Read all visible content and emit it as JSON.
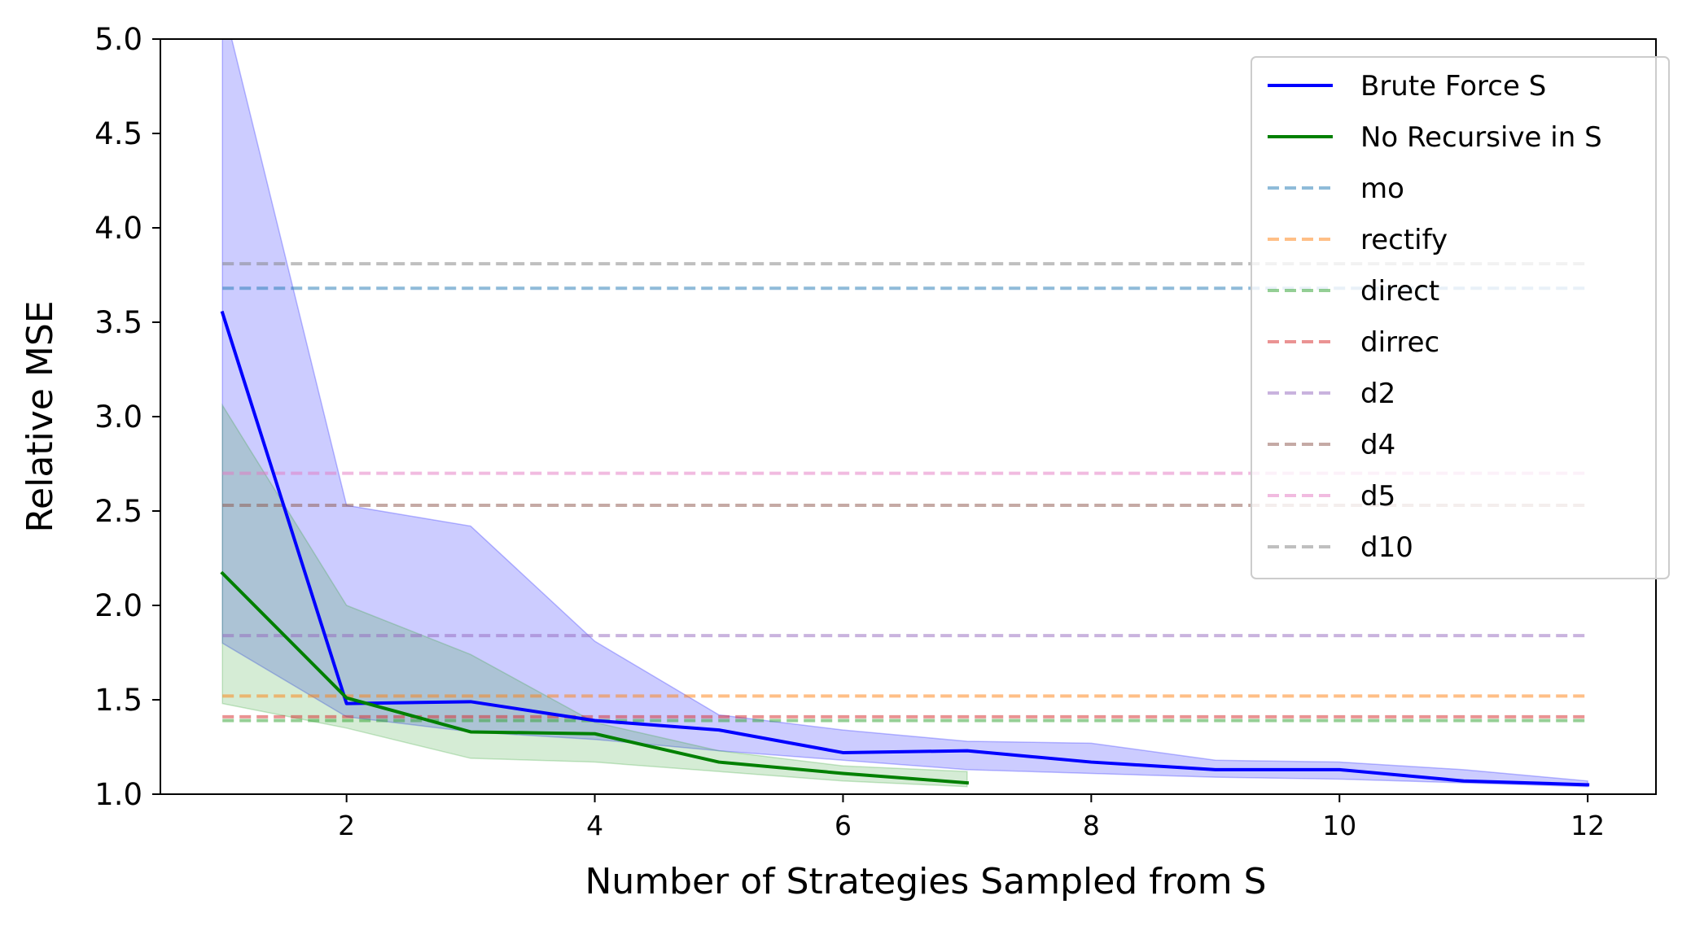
{
  "chart_data": {
    "type": "line",
    "title": "",
    "xlabel": "Number of Strategies Sampled from S",
    "ylabel": "Relative MSE",
    "xlim": [
      0.5,
      12.55
    ],
    "ylim": [
      1.0,
      5.0
    ],
    "x_ticks": [
      2,
      4,
      6,
      8,
      10,
      12
    ],
    "x_tick_labels": [
      "2",
      "4",
      "6",
      "8",
      "10",
      "12"
    ],
    "y_ticks": [
      1.0,
      1.5,
      2.0,
      2.5,
      3.0,
      3.5,
      4.0,
      4.5,
      5.0
    ],
    "y_tick_labels": [
      "1.0",
      "1.5",
      "2.0",
      "2.5",
      "3.0",
      "3.5",
      "4.0",
      "4.5",
      "5.0"
    ],
    "grid": false,
    "legend_position": "top-right",
    "series": [
      {
        "name": "Brute Force S",
        "style": "solid",
        "color": "#0000ff",
        "x": [
          1,
          2,
          3,
          4,
          5,
          6,
          7,
          8,
          9,
          10,
          11,
          12
        ],
        "y": [
          3.55,
          1.48,
          1.49,
          1.39,
          1.34,
          1.22,
          1.23,
          1.17,
          1.13,
          1.13,
          1.07,
          1.05
        ],
        "band_upper": [
          5.2,
          2.53,
          2.42,
          1.81,
          1.42,
          1.34,
          1.28,
          1.27,
          1.18,
          1.17,
          1.13,
          1.07
        ],
        "band_lower": [
          1.8,
          1.41,
          1.33,
          1.29,
          1.23,
          1.18,
          1.13,
          1.11,
          1.09,
          1.08,
          1.06,
          1.04
        ],
        "band_color": "#0000ff"
      },
      {
        "name": "No Recursive in S",
        "style": "solid",
        "color": "#008000",
        "x": [
          1,
          2,
          3,
          4,
          5,
          6,
          7
        ],
        "y": [
          2.17,
          1.51,
          1.33,
          1.32,
          1.17,
          1.11,
          1.06
        ],
        "band_upper": [
          3.06,
          2.0,
          1.74,
          1.38,
          1.23,
          1.15,
          1.12
        ],
        "band_lower": [
          1.48,
          1.35,
          1.19,
          1.17,
          1.12,
          1.07,
          1.04
        ],
        "band_color": "#2ca02c"
      },
      {
        "name": "mo",
        "style": "dashed",
        "color": "#1f77b4",
        "x": [
          1,
          12
        ],
        "y": [
          3.68,
          3.68
        ]
      },
      {
        "name": "rectify",
        "style": "dashed",
        "color": "#ff7f0e",
        "x": [
          1,
          12
        ],
        "y": [
          1.52,
          1.52
        ]
      },
      {
        "name": "direct",
        "style": "dashed",
        "color": "#2ca02c",
        "x": [
          1,
          12
        ],
        "y": [
          1.39,
          1.39
        ]
      },
      {
        "name": "dirrec",
        "style": "dashed",
        "color": "#d62728",
        "x": [
          1,
          12
        ],
        "y": [
          1.41,
          1.41
        ]
      },
      {
        "name": "d2",
        "style": "dashed",
        "color": "#9467bd",
        "x": [
          1,
          12
        ],
        "y": [
          1.84,
          1.84
        ]
      },
      {
        "name": "d4",
        "style": "dashed",
        "color": "#8c564b",
        "x": [
          1,
          12
        ],
        "y": [
          2.53,
          2.53
        ]
      },
      {
        "name": "d5",
        "style": "dashed",
        "color": "#e377c2",
        "x": [
          1,
          12
        ],
        "y": [
          2.7,
          2.7
        ]
      },
      {
        "name": "d10",
        "style": "dashed",
        "color": "#7f7f7f",
        "x": [
          1,
          12
        ],
        "y": [
          3.81,
          3.81
        ]
      }
    ]
  }
}
